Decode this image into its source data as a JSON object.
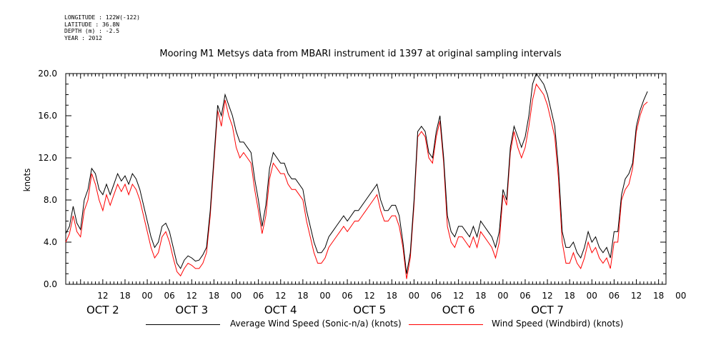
{
  "meta": {
    "longitude": "LONGITUDE : 122W(-122)",
    "latitude": "LATITUDE : 36.8N",
    "depth": "DEPTH (m) : -2.5",
    "year": "YEAR : 2012"
  },
  "chart_data": {
    "type": "line",
    "title": "Mooring M1 Metsys data from MBARI instrument id 1397 at original sampling intervals",
    "ylabel": "knots",
    "xlabel": "",
    "ylim": [
      0,
      20.0
    ],
    "y_ticks": [
      "0.0",
      "4.0",
      "8.0",
      "12.0",
      "16.0",
      "20.0"
    ],
    "x_hour_ticks": [
      "12",
      "18",
      "00",
      "06",
      "12",
      "18",
      "00",
      "06",
      "12",
      "18",
      "00",
      "06",
      "12",
      "18",
      "00",
      "06",
      "12",
      "18",
      "00",
      "06",
      "12",
      "18",
      "00",
      "06",
      "12",
      "18",
      "00"
    ],
    "x_day_labels": [
      "OCT  2",
      "OCT  3",
      "OCT  4",
      "OCT  5",
      "OCT  6",
      "OCT  7"
    ],
    "x_units": "hours from 06 Oct 2",
    "xlim": [
      2,
      164
    ],
    "grid": false,
    "legend_position": "bottom",
    "series": [
      {
        "name": "Average Wind Speed (Sonic-n/a) (knots)",
        "color": "#000000",
        "points": [
          [
            2,
            4.8
          ],
          [
            3,
            5.5
          ],
          [
            4,
            7.4
          ],
          [
            5,
            5.8
          ],
          [
            6,
            5.2
          ],
          [
            7,
            8.0
          ],
          [
            8,
            9.0
          ],
          [
            9,
            11.0
          ],
          [
            10,
            10.5
          ],
          [
            11,
            9.0
          ],
          [
            12,
            8.5
          ],
          [
            13,
            9.5
          ],
          [
            14,
            8.5
          ],
          [
            15,
            9.5
          ],
          [
            16,
            10.5
          ],
          [
            17,
            9.8
          ],
          [
            18,
            10.3
          ],
          [
            19,
            9.5
          ],
          [
            20,
            10.5
          ],
          [
            21,
            10.0
          ],
          [
            22,
            9.0
          ],
          [
            23,
            7.5
          ],
          [
            24,
            6.0
          ],
          [
            25,
            4.5
          ],
          [
            26,
            3.5
          ],
          [
            27,
            4.0
          ],
          [
            28,
            5.5
          ],
          [
            29,
            5.8
          ],
          [
            30,
            5.0
          ],
          [
            31,
            3.5
          ],
          [
            32,
            2.0
          ],
          [
            33,
            1.5
          ],
          [
            34,
            2.3
          ],
          [
            35,
            2.7
          ],
          [
            36,
            2.5
          ],
          [
            37,
            2.2
          ],
          [
            38,
            2.3
          ],
          [
            39,
            2.8
          ],
          [
            40,
            3.5
          ],
          [
            41,
            7.0
          ],
          [
            42,
            12.0
          ],
          [
            43,
            17.0
          ],
          [
            44,
            16.0
          ],
          [
            45,
            18.0
          ],
          [
            46,
            17.0
          ],
          [
            47,
            16.0
          ],
          [
            48,
            14.5
          ],
          [
            49,
            13.5
          ],
          [
            50,
            13.5
          ],
          [
            51,
            13.0
          ],
          [
            52,
            12.5
          ],
          [
            53,
            10.0
          ],
          [
            54,
            8.0
          ],
          [
            55,
            5.5
          ],
          [
            56,
            7.5
          ],
          [
            57,
            11.0
          ],
          [
            58,
            12.5
          ],
          [
            59,
            12.0
          ],
          [
            60,
            11.5
          ],
          [
            61,
            11.5
          ],
          [
            62,
            10.5
          ],
          [
            63,
            10.0
          ],
          [
            64,
            10.0
          ],
          [
            65,
            9.5
          ],
          [
            66,
            9.0
          ],
          [
            67,
            7.0
          ],
          [
            68,
            5.5
          ],
          [
            69,
            4.0
          ],
          [
            70,
            3.0
          ],
          [
            71,
            3.0
          ],
          [
            72,
            3.5
          ],
          [
            73,
            4.5
          ],
          [
            74,
            5.0
          ],
          [
            75,
            5.5
          ],
          [
            76,
            6.0
          ],
          [
            77,
            6.5
          ],
          [
            78,
            6.0
          ],
          [
            79,
            6.5
          ],
          [
            80,
            7.0
          ],
          [
            81,
            7.0
          ],
          [
            82,
            7.5
          ],
          [
            83,
            8.0
          ],
          [
            84,
            8.5
          ],
          [
            85,
            9.0
          ],
          [
            86,
            9.5
          ],
          [
            87,
            8.0
          ],
          [
            88,
            7.0
          ],
          [
            89,
            7.0
          ],
          [
            90,
            7.5
          ],
          [
            91,
            7.5
          ],
          [
            92,
            6.5
          ],
          [
            93,
            4.0
          ],
          [
            94,
            1.0
          ],
          [
            95,
            3.0
          ],
          [
            96,
            8.0
          ],
          [
            97,
            14.5
          ],
          [
            98,
            15.0
          ],
          [
            99,
            14.5
          ],
          [
            100,
            12.5
          ],
          [
            101,
            12.0
          ],
          [
            102,
            14.5
          ],
          [
            103,
            16.0
          ],
          [
            104,
            12.0
          ],
          [
            105,
            6.5
          ],
          [
            106,
            5.0
          ],
          [
            107,
            4.5
          ],
          [
            108,
            5.5
          ],
          [
            109,
            5.5
          ],
          [
            110,
            5.0
          ],
          [
            111,
            4.5
          ],
          [
            112,
            5.5
          ],
          [
            113,
            4.5
          ],
          [
            114,
            6.0
          ],
          [
            115,
            5.5
          ],
          [
            116,
            5.0
          ],
          [
            117,
            4.5
          ],
          [
            118,
            3.5
          ],
          [
            119,
            5.0
          ],
          [
            120,
            9.0
          ],
          [
            121,
            8.0
          ],
          [
            122,
            13.0
          ],
          [
            123,
            15.0
          ],
          [
            124,
            14.0
          ],
          [
            125,
            13.0
          ],
          [
            126,
            14.0
          ],
          [
            127,
            16.0
          ],
          [
            128,
            19.0
          ],
          [
            129,
            20.0
          ],
          [
            130,
            19.5
          ],
          [
            131,
            19.0
          ],
          [
            132,
            18.0
          ],
          [
            133,
            16.5
          ],
          [
            134,
            15.0
          ],
          [
            135,
            11.0
          ],
          [
            136,
            5.0
          ],
          [
            137,
            3.5
          ],
          [
            138,
            3.5
          ],
          [
            139,
            4.0
          ],
          [
            140,
            3.0
          ],
          [
            141,
            2.5
          ],
          [
            142,
            3.5
          ],
          [
            143,
            5.0
          ],
          [
            144,
            4.0
          ],
          [
            145,
            4.5
          ],
          [
            146,
            3.5
          ],
          [
            147,
            3.0
          ],
          [
            148,
            3.5
          ],
          [
            149,
            2.5
          ],
          [
            150,
            5.0
          ],
          [
            151,
            5.0
          ],
          [
            152,
            8.5
          ],
          [
            153,
            10.0
          ],
          [
            154,
            10.5
          ],
          [
            155,
            11.5
          ],
          [
            156,
            15.0
          ],
          [
            157,
            16.5
          ],
          [
            158,
            17.5
          ],
          [
            159,
            18.3
          ]
        ]
      },
      {
        "name": "Wind Speed (Windbird) (knots)",
        "color": "#ff0000",
        "points": [
          [
            2,
            4.0
          ],
          [
            3,
            4.8
          ],
          [
            4,
            6.5
          ],
          [
            5,
            5.0
          ],
          [
            6,
            4.5
          ],
          [
            7,
            7.0
          ],
          [
            8,
            8.0
          ],
          [
            9,
            10.5
          ],
          [
            10,
            9.5
          ],
          [
            11,
            8.0
          ],
          [
            12,
            7.0
          ],
          [
            13,
            8.5
          ],
          [
            14,
            7.5
          ],
          [
            15,
            8.5
          ],
          [
            16,
            9.5
          ],
          [
            17,
            8.8
          ],
          [
            18,
            9.5
          ],
          [
            19,
            8.5
          ],
          [
            20,
            9.5
          ],
          [
            21,
            9.0
          ],
          [
            22,
            8.0
          ],
          [
            23,
            6.5
          ],
          [
            24,
            5.0
          ],
          [
            25,
            3.5
          ],
          [
            26,
            2.5
          ],
          [
            27,
            3.0
          ],
          [
            28,
            4.5
          ],
          [
            29,
            5.0
          ],
          [
            30,
            4.0
          ],
          [
            31,
            2.5
          ],
          [
            32,
            1.2
          ],
          [
            33,
            0.8
          ],
          [
            34,
            1.5
          ],
          [
            35,
            2.0
          ],
          [
            36,
            1.8
          ],
          [
            37,
            1.5
          ],
          [
            38,
            1.5
          ],
          [
            39,
            2.0
          ],
          [
            40,
            3.0
          ],
          [
            41,
            6.5
          ],
          [
            42,
            11.5
          ],
          [
            43,
            16.5
          ],
          [
            44,
            15.0
          ],
          [
            45,
            17.5
          ],
          [
            46,
            16.0
          ],
          [
            47,
            15.0
          ],
          [
            48,
            13.0
          ],
          [
            49,
            12.0
          ],
          [
            50,
            12.5
          ],
          [
            51,
            12.0
          ],
          [
            52,
            11.5
          ],
          [
            53,
            9.0
          ],
          [
            54,
            7.0
          ],
          [
            55,
            4.8
          ],
          [
            56,
            6.5
          ],
          [
            57,
            10.0
          ],
          [
            58,
            11.5
          ],
          [
            59,
            11.0
          ],
          [
            60,
            10.5
          ],
          [
            61,
            10.5
          ],
          [
            62,
            9.5
          ],
          [
            63,
            9.0
          ],
          [
            64,
            9.0
          ],
          [
            65,
            8.5
          ],
          [
            66,
            8.0
          ],
          [
            67,
            6.0
          ],
          [
            68,
            4.5
          ],
          [
            69,
            3.0
          ],
          [
            70,
            2.0
          ],
          [
            71,
            2.0
          ],
          [
            72,
            2.5
          ],
          [
            73,
            3.5
          ],
          [
            74,
            4.0
          ],
          [
            75,
            4.5
          ],
          [
            76,
            5.0
          ],
          [
            77,
            5.5
          ],
          [
            78,
            5.0
          ],
          [
            79,
            5.5
          ],
          [
            80,
            6.0
          ],
          [
            81,
            6.0
          ],
          [
            82,
            6.5
          ],
          [
            83,
            7.0
          ],
          [
            84,
            7.5
          ],
          [
            85,
            8.0
          ],
          [
            86,
            8.5
          ],
          [
            87,
            7.0
          ],
          [
            88,
            6.0
          ],
          [
            89,
            6.0
          ],
          [
            90,
            6.5
          ],
          [
            91,
            6.5
          ],
          [
            92,
            5.5
          ],
          [
            93,
            3.5
          ],
          [
            94,
            0.5
          ],
          [
            95,
            2.5
          ],
          [
            96,
            7.5
          ],
          [
            97,
            14.0
          ],
          [
            98,
            14.5
          ],
          [
            99,
            14.0
          ],
          [
            100,
            12.0
          ],
          [
            101,
            11.5
          ],
          [
            102,
            14.0
          ],
          [
            103,
            15.5
          ],
          [
            104,
            11.5
          ],
          [
            105,
            5.5
          ],
          [
            106,
            4.0
          ],
          [
            107,
            3.5
          ],
          [
            108,
            4.5
          ],
          [
            109,
            4.5
          ],
          [
            110,
            4.0
          ],
          [
            111,
            3.5
          ],
          [
            112,
            4.5
          ],
          [
            113,
            3.5
          ],
          [
            114,
            5.0
          ],
          [
            115,
            4.5
          ],
          [
            116,
            4.0
          ],
          [
            117,
            3.5
          ],
          [
            118,
            2.5
          ],
          [
            119,
            4.0
          ],
          [
            120,
            8.5
          ],
          [
            121,
            7.5
          ],
          [
            122,
            12.5
          ],
          [
            123,
            14.5
          ],
          [
            124,
            13.0
          ],
          [
            125,
            12.0
          ],
          [
            126,
            13.0
          ],
          [
            127,
            15.0
          ],
          [
            128,
            17.5
          ],
          [
            129,
            19.0
          ],
          [
            130,
            18.5
          ],
          [
            131,
            18.0
          ],
          [
            132,
            17.0
          ],
          [
            133,
            15.5
          ],
          [
            134,
            14.0
          ],
          [
            135,
            10.0
          ],
          [
            136,
            4.0
          ],
          [
            137,
            2.0
          ],
          [
            138,
            2.0
          ],
          [
            139,
            3.0
          ],
          [
            140,
            2.0
          ],
          [
            141,
            1.5
          ],
          [
            142,
            2.5
          ],
          [
            143,
            4.0
          ],
          [
            144,
            3.0
          ],
          [
            145,
            3.5
          ],
          [
            146,
            2.5
          ],
          [
            147,
            2.0
          ],
          [
            148,
            2.5
          ],
          [
            149,
            1.5
          ],
          [
            150,
            4.0
          ],
          [
            151,
            4.0
          ],
          [
            152,
            8.0
          ],
          [
            153,
            9.0
          ],
          [
            154,
            9.5
          ],
          [
            155,
            11.0
          ],
          [
            156,
            14.5
          ],
          [
            157,
            16.0
          ],
          [
            158,
            17.0
          ],
          [
            159,
            17.3
          ]
        ]
      }
    ]
  }
}
